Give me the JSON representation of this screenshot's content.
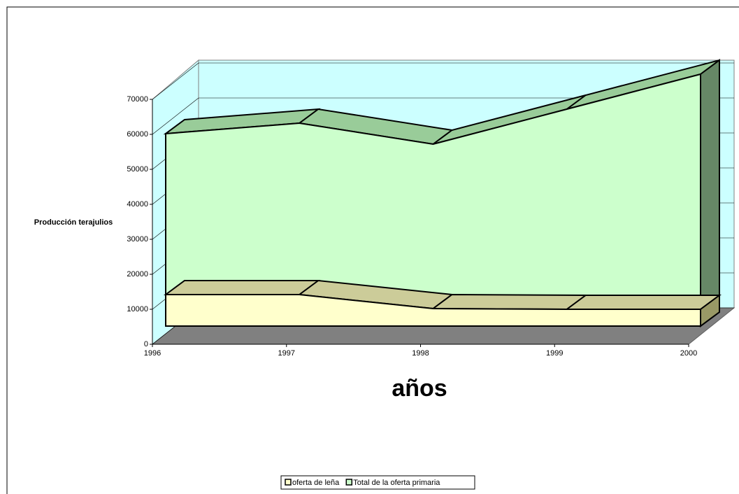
{
  "chart_data": {
    "type": "area3d",
    "categories": [
      "1996",
      "1997",
      "1998",
      "1999",
      "2000"
    ],
    "series": [
      {
        "name": "oferta de leña",
        "color": "#ffffcc",
        "values": [
          9000,
          9000,
          5000,
          4800,
          4800
        ]
      },
      {
        "name": "Total de la oferta primaria",
        "color": "#ccffcc",
        "values": [
          55000,
          58000,
          52000,
          62000,
          72000
        ]
      }
    ],
    "ylim": [
      0,
      70000
    ],
    "yticks": [
      0,
      10000,
      20000,
      30000,
      40000,
      50000,
      60000,
      70000
    ],
    "ylabel": "Producción terajulios",
    "xlabel": "años",
    "grid": true,
    "legend": "bottom"
  }
}
